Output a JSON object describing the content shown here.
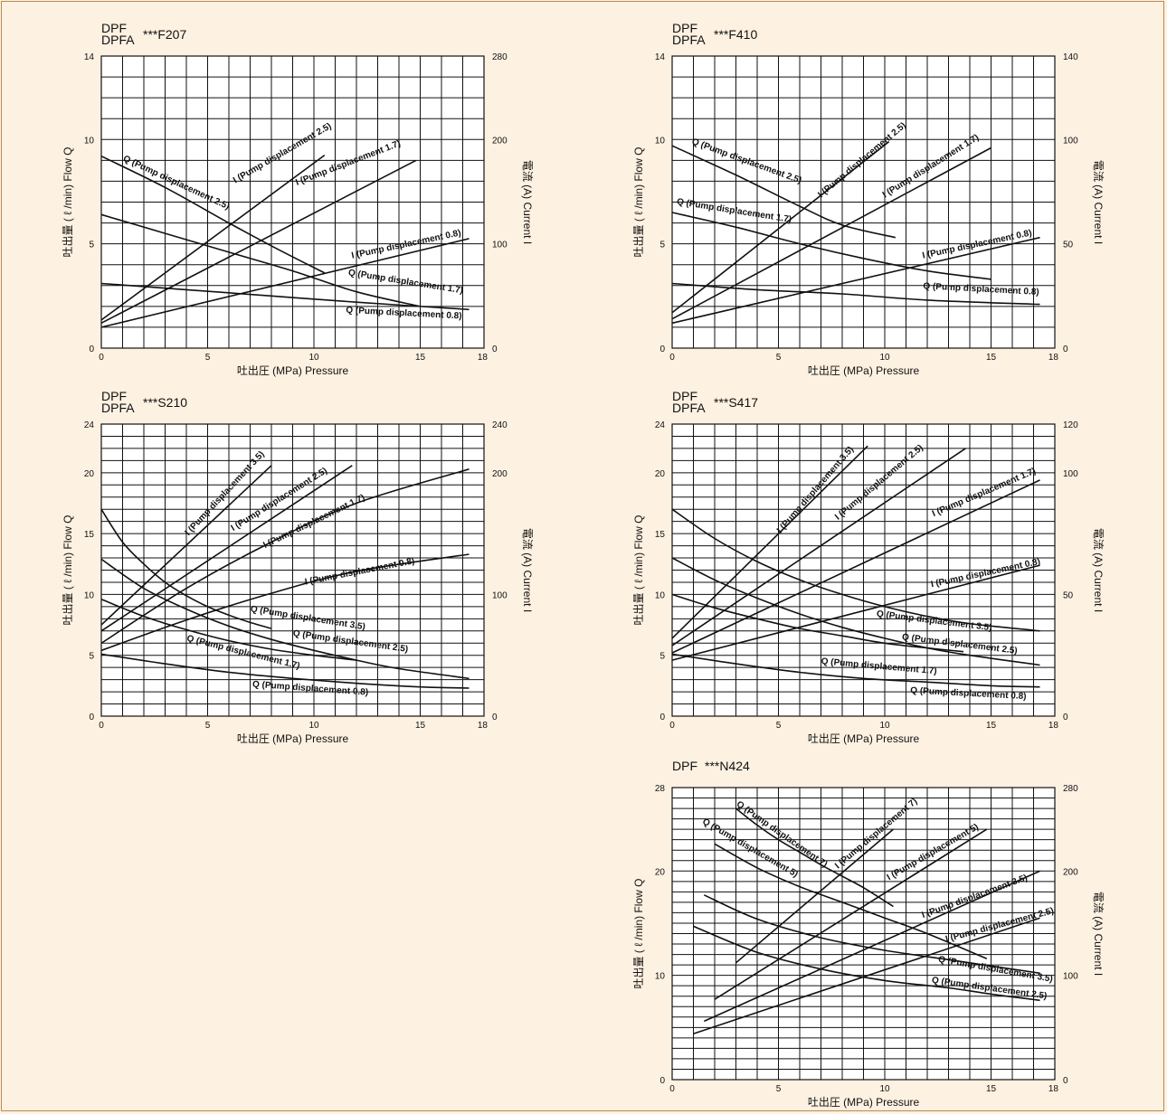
{
  "figure": {
    "background": "#fdf1e1",
    "line_color": "#111111"
  },
  "chart_data": [
    {
      "type": "line",
      "title_line1": "DPF",
      "title_line2": "DPFA",
      "title_code": "***F207",
      "xlabel": "吐出圧 (MPa) Pressure",
      "ylabel": "吐出量 ( ℓ /min) Flow  Q",
      "y2label": "電流 (A) Current  I",
      "xlim": [
        0,
        18
      ],
      "ylim": [
        0,
        14
      ],
      "y2lim": [
        0,
        280
      ],
      "x_ticks": [
        0,
        5,
        10,
        15,
        18
      ],
      "y_ticks": [
        0,
        5,
        10,
        14
      ],
      "y2_ticks": [
        0,
        100,
        200,
        280
      ],
      "grid": {
        "x_step": 1,
        "y_step": 1
      },
      "series": [
        {
          "name": "Q (Pump displacement 2.5)",
          "axis": "left",
          "x": [
            0,
            3,
            6,
            8,
            10.5
          ],
          "y": [
            9.2,
            7.7,
            6.0,
            4.9,
            3.6
          ]
        },
        {
          "name": "Q (Pump displacement 1.7)",
          "axis": "left",
          "x": [
            0,
            3,
            6,
            9,
            12,
            15
          ],
          "y": [
            6.4,
            5.5,
            4.6,
            3.7,
            2.7,
            2.0
          ]
        },
        {
          "name": "Q (Pump displacement 0.8)",
          "axis": "left",
          "x": [
            0,
            4,
            8,
            12,
            17.3
          ],
          "y": [
            3.1,
            2.8,
            2.5,
            2.2,
            1.85
          ]
        },
        {
          "name": "I (Pump displacement 2.5)",
          "axis": "right",
          "x": [
            0,
            10.5
          ],
          "y": [
            27,
            185
          ]
        },
        {
          "name": "I (Pump displacement 1.7)",
          "axis": "right",
          "x": [
            0,
            14.8
          ],
          "y": [
            24,
            180
          ]
        },
        {
          "name": "I (Pump displacement 0.8)",
          "axis": "right",
          "x": [
            0,
            17.3
          ],
          "y": [
            20,
            105
          ]
        }
      ],
      "curve_labels": [
        {
          "text": "Q (Pump displacement 2.5)",
          "x": 1.0,
          "y": 9.0,
          "angle": 25
        },
        {
          "text": "I (Pump displacement 2.5)",
          "x": 6.3,
          "y": 7.9,
          "angle": -30
        },
        {
          "text": "I (Pump displacement 1.7)",
          "x": 9.2,
          "y": 7.8,
          "angle": -21
        },
        {
          "text": "I (Pump displacement 0.8)",
          "x": 11.8,
          "y": 4.3,
          "angle": -12
        },
        {
          "text": "Q (Pump displacement 1.7)",
          "x": 11.6,
          "y": 3.5,
          "angle": 9
        },
        {
          "text": "Q (Pump displacement 0.8)",
          "x": 11.5,
          "y": 1.7,
          "angle": 3
        }
      ]
    },
    {
      "type": "line",
      "title_line1": "DPF",
      "title_line2": "DPFA",
      "title_code": "***F410",
      "xlabel": "吐出圧 (MPa) Pressure",
      "ylabel": "吐出量 ( ℓ /min) Flow  Q",
      "y2label": "電流 (A) Current  I",
      "xlim": [
        0,
        18
      ],
      "ylim": [
        0,
        14
      ],
      "y2lim": [
        0,
        140
      ],
      "x_ticks": [
        0,
        5,
        10,
        15,
        18
      ],
      "y_ticks": [
        0,
        5,
        10,
        14
      ],
      "y2_ticks": [
        0,
        50,
        100,
        140
      ],
      "grid": {
        "x_step": 1,
        "y_step": 1
      },
      "series": [
        {
          "name": "Q (Pump displacement 2.5)",
          "axis": "left",
          "x": [
            0,
            3,
            6,
            8,
            10.5
          ],
          "y": [
            9.7,
            8.3,
            6.8,
            5.9,
            5.3
          ]
        },
        {
          "name": "Q (Pump displacement 1.7)",
          "axis": "left",
          "x": [
            0,
            3,
            6,
            9,
            12,
            15
          ],
          "y": [
            6.5,
            5.8,
            5.0,
            4.3,
            3.7,
            3.3
          ]
        },
        {
          "name": "Q (Pump displacement 0.8)",
          "axis": "left",
          "x": [
            0,
            4,
            8,
            12,
            17.3
          ],
          "y": [
            3.1,
            2.8,
            2.6,
            2.3,
            2.1
          ]
        },
        {
          "name": "I (Pump displacement 2.5)",
          "axis": "right",
          "x": [
            0,
            10.2
          ],
          "y": [
            17,
            99
          ]
        },
        {
          "name": "I (Pump displacement 1.7)",
          "axis": "right",
          "x": [
            0,
            15.0
          ],
          "y": [
            14,
            96
          ]
        },
        {
          "name": "I (Pump displacement 0.8)",
          "axis": "right",
          "x": [
            0,
            17.3
          ],
          "y": [
            12,
            53
          ]
        }
      ],
      "curve_labels": [
        {
          "text": "Q (Pump displacement 2.5)",
          "x": 0.9,
          "y": 9.8,
          "angle": 20
        },
        {
          "text": "Q (Pump displacement 1.7)",
          "x": 0.2,
          "y": 6.9,
          "angle": 9
        },
        {
          "text": "I (Pump displacement 2.5)",
          "x": 7.0,
          "y": 7.2,
          "angle": -40
        },
        {
          "text": "I (Pump displacement 1.7)",
          "x": 10.0,
          "y": 7.2,
          "angle": -32
        },
        {
          "text": "I (Pump displacement 0.8)",
          "x": 11.8,
          "y": 4.3,
          "angle": -12
        },
        {
          "text": "Q (Pump displacement 0.8)",
          "x": 11.8,
          "y": 2.85,
          "angle": 3
        }
      ]
    },
    {
      "type": "line",
      "title_line1": "DPF",
      "title_line2": "DPFA",
      "title_code": "***S210",
      "xlabel": "吐出圧 (MPa) Pressure",
      "ylabel": "吐出量 ( ℓ /min) Flow  Q",
      "y2label": "電流 (A) Current  I",
      "xlim": [
        0,
        18
      ],
      "ylim": [
        0,
        24
      ],
      "y2lim": [
        0,
        240
      ],
      "x_ticks": [
        0,
        5,
        10,
        15,
        18
      ],
      "y_ticks": [
        0,
        5,
        10,
        15,
        20,
        24
      ],
      "y2_ticks": [
        0,
        100,
        200,
        240
      ],
      "grid": {
        "x_step": 1,
        "y_step": 1
      },
      "series": [
        {
          "name": "Q (Pump displacement 3.5)",
          "axis": "left",
          "x": [
            0,
            1,
            2,
            3,
            4,
            5,
            6,
            7,
            8
          ],
          "y": [
            17.0,
            14.3,
            12.5,
            11.0,
            9.9,
            9.0,
            8.3,
            7.7,
            7.2
          ]
        },
        {
          "name": "Q (Pump displacement 2.5)",
          "axis": "left",
          "x": [
            0,
            2,
            4,
            6,
            8,
            10,
            12,
            14,
            17.3
          ],
          "y": [
            12.9,
            10.5,
            8.8,
            7.4,
            6.3,
            5.4,
            4.6,
            3.9,
            3.1
          ]
        },
        {
          "name": "Q (Pump displacement 1.7)",
          "axis": "left",
          "x": [
            0,
            2,
            4,
            6,
            8,
            10,
            12
          ],
          "y": [
            9.6,
            8.2,
            7.1,
            6.2,
            5.5,
            5.0,
            4.6
          ]
        },
        {
          "name": "Q (Pump displacement 0.8)",
          "axis": "left",
          "x": [
            0,
            3,
            6,
            9,
            12,
            15,
            17.3
          ],
          "y": [
            5.1,
            4.3,
            3.6,
            3.1,
            2.7,
            2.4,
            2.3
          ]
        },
        {
          "name": "I (Pump displacement 3.5)",
          "axis": "right",
          "x": [
            0,
            8
          ],
          "y": [
            75,
            206
          ]
        },
        {
          "name": "I (Pump displacement 2.5)",
          "axis": "right",
          "x": [
            0,
            11.8
          ],
          "y": [
            70,
            206
          ]
        },
        {
          "name": "I (Pump displacement 1.7)",
          "axis": "right",
          "x": [
            0,
            4,
            8,
            12,
            17.3
          ],
          "y": [
            60,
            105,
            143,
            175,
            203
          ]
        },
        {
          "name": "I (Pump displacement 0.8)",
          "axis": "right",
          "x": [
            0,
            4,
            8,
            12,
            17.3
          ],
          "y": [
            54,
            79,
            101,
            119,
            133
          ]
        }
      ],
      "curve_labels": [
        {
          "text": "I (Pump displacement 3.5)",
          "x": 4.1,
          "y": 14.8,
          "angle": -47
        },
        {
          "text": "I (Pump displacement 2.5)",
          "x": 6.2,
          "y": 15.2,
          "angle": -32
        },
        {
          "text": "I (Pump displacement 1.7)",
          "x": 7.7,
          "y": 13.8,
          "angle": -26
        },
        {
          "text": "I (Pump displacement 0.8)",
          "x": 9.6,
          "y": 10.8,
          "angle": -11
        },
        {
          "text": "Q (Pump displacement 3.5)",
          "x": 7.0,
          "y": 8.6,
          "angle": 9
        },
        {
          "text": "Q (Pump displacement 2.5)",
          "x": 9.0,
          "y": 6.6,
          "angle": 8
        },
        {
          "text": "Q (Pump displacement 1.7)",
          "x": 4.0,
          "y": 6.2,
          "angle": 14
        },
        {
          "text": "Q (Pump displacement 0.8)",
          "x": 7.1,
          "y": 2.4,
          "angle": 4
        }
      ]
    },
    {
      "type": "line",
      "title_line1": "DPF",
      "title_line2": "DPFA",
      "title_code": "***S417",
      "xlabel": "吐出圧 (MPa) Pressure",
      "ylabel": "吐出量 ( ℓ /min) Flow  Q",
      "y2label": "電流 (A) Current  I",
      "xlim": [
        0,
        18
      ],
      "ylim": [
        0,
        24
      ],
      "y2lim": [
        0,
        120
      ],
      "x_ticks": [
        0,
        5,
        10,
        15,
        18
      ],
      "y_ticks": [
        0,
        5,
        10,
        15,
        20,
        24
      ],
      "y2_ticks": [
        0,
        50,
        100,
        120
      ],
      "grid": {
        "x_step": 1,
        "y_step": 1
      },
      "series": [
        {
          "name": "Q (Pump displacement 3.5)",
          "axis": "left",
          "x": [
            0,
            2,
            4,
            6,
            8,
            10,
            12,
            14,
            17.3
          ],
          "y": [
            17.0,
            14.6,
            12.7,
            11.2,
            10.0,
            9.0,
            8.2,
            7.6,
            7.0
          ]
        },
        {
          "name": "Q (Pump displacement 2.5)",
          "axis": "left",
          "x": [
            0,
            2,
            4,
            6,
            8,
            10,
            12,
            14,
            17.3
          ],
          "y": [
            13.0,
            11.2,
            9.7,
            8.4,
            7.3,
            6.4,
            5.6,
            5.0,
            4.2
          ]
        },
        {
          "name": "Q (Pump displacement 1.7)",
          "axis": "left",
          "x": [
            0,
            2,
            4,
            6,
            8,
            10,
            12,
            13.7
          ],
          "y": [
            10.0,
            8.9,
            8.0,
            7.2,
            6.6,
            6.0,
            5.6,
            5.3
          ]
        },
        {
          "name": "Q (Pump displacement 0.8)",
          "axis": "left",
          "x": [
            0,
            3,
            6,
            9,
            12,
            15,
            17.3
          ],
          "y": [
            5.1,
            4.3,
            3.6,
            3.1,
            2.8,
            2.5,
            2.4
          ]
        },
        {
          "name": "I (Pump displacement 3.5)",
          "axis": "right",
          "x": [
            0,
            9.2
          ],
          "y": [
            32,
            111
          ]
        },
        {
          "name": "I (Pump displacement 2.5)",
          "axis": "right",
          "x": [
            0,
            13.8
          ],
          "y": [
            29,
            110
          ]
        },
        {
          "name": "I (Pump displacement 1.7)",
          "axis": "right",
          "x": [
            0,
            17.3
          ],
          "y": [
            26,
            97
          ]
        },
        {
          "name": "I (Pump displacement 0.8)",
          "axis": "right",
          "x": [
            0,
            17.3
          ],
          "y": [
            23,
            62
          ]
        }
      ],
      "curve_labels": [
        {
          "text": "I (Pump displacement 3.5)",
          "x": 5.1,
          "y": 15.0,
          "angle": -49
        },
        {
          "text": "I (Pump displacement 2.5)",
          "x": 7.8,
          "y": 16.1,
          "angle": -40
        },
        {
          "text": "I (Pump displacement 1.7)",
          "x": 12.3,
          "y": 16.4,
          "angle": -23
        },
        {
          "text": "I (Pump displacement 0.8)",
          "x": 12.2,
          "y": 10.6,
          "angle": -12
        },
        {
          "text": "Q (Pump displacement 3.5)",
          "x": 9.6,
          "y": 8.2,
          "angle": 7
        },
        {
          "text": "Q (Pump displacement 2.5)",
          "x": 10.8,
          "y": 6.3,
          "angle": 7
        },
        {
          "text": "Q (Pump displacement 1.7)",
          "x": 7.0,
          "y": 4.3,
          "angle": 5
        },
        {
          "text": "Q (Pump displacement 0.8)",
          "x": 11.2,
          "y": 1.9,
          "angle": 3
        }
      ]
    },
    {
      "type": "line",
      "title_line1": "",
      "title_line2": "DPF",
      "title_code": "***N424",
      "xlabel": "吐出圧 (MPa) Pressure",
      "ylabel": "吐出量 ( ℓ /min) Flow  Q",
      "y2label": "電流 (A) Current  I",
      "xlim": [
        0,
        18
      ],
      "ylim": [
        0,
        28
      ],
      "y2lim": [
        0,
        280
      ],
      "x_ticks": [
        0,
        5,
        10,
        15,
        18
      ],
      "y_ticks": [
        0,
        10,
        20,
        28
      ],
      "y2_ticks": [
        0,
        100,
        200,
        280
      ],
      "grid": {
        "x_step": 1,
        "y_step": 1
      },
      "series": [
        {
          "name": "Q (Pump displacement 7)",
          "axis": "left",
          "x": [
            3,
            4,
            5,
            6,
            7,
            8,
            9,
            10.4
          ],
          "y": [
            26.0,
            24.4,
            23.0,
            21.8,
            20.6,
            19.5,
            18.4,
            16.6
          ]
        },
        {
          "name": "Q (Pump displacement 5)",
          "axis": "left",
          "x": [
            2,
            4,
            6,
            8,
            10,
            12,
            14.8
          ],
          "y": [
            22.6,
            20.3,
            18.5,
            17.0,
            15.5,
            14.0,
            11.6
          ]
        },
        {
          "name": "Q (Pump displacement 3.5)",
          "axis": "left",
          "x": [
            1.5,
            4,
            7,
            10,
            13,
            15,
            17.3
          ],
          "y": [
            17.7,
            15.4,
            13.6,
            12.4,
            11.5,
            10.9,
            10.2
          ]
        },
        {
          "name": "Q (Pump displacement 2.5)",
          "axis": "left",
          "x": [
            1,
            4,
            7,
            10,
            13,
            15,
            17.3
          ],
          "y": [
            14.7,
            12.2,
            10.6,
            9.5,
            8.8,
            8.2,
            7.6
          ]
        },
        {
          "name": "I (Pump displacement 7)",
          "axis": "right",
          "x": [
            3,
            10.4
          ],
          "y": [
            112,
            240
          ]
        },
        {
          "name": "I (Pump displacement 5)",
          "axis": "right",
          "x": [
            2,
            14.8
          ],
          "y": [
            77,
            240
          ]
        },
        {
          "name": "I (Pump displacement 3.5)",
          "axis": "right",
          "x": [
            1.5,
            17.3
          ],
          "y": [
            56,
            200
          ]
        },
        {
          "name": "I (Pump displacement 2.5)",
          "axis": "right",
          "x": [
            1,
            17.3
          ],
          "y": [
            44,
            155
          ]
        }
      ],
      "curve_labels": [
        {
          "text": "Q (Pump displacement 7)",
          "x": 3.0,
          "y": 26.3,
          "angle": 35
        },
        {
          "text": "Q (Pump displacement 5)",
          "x": 1.4,
          "y": 24.6,
          "angle": 30
        },
        {
          "text": "I (Pump displacement 7)",
          "x": 7.8,
          "y": 20.2,
          "angle": -40
        },
        {
          "text": "I (Pump displacement 5)",
          "x": 10.2,
          "y": 19.1,
          "angle": -30
        },
        {
          "text": "I (Pump displacement 3.5)",
          "x": 11.8,
          "y": 15.5,
          "angle": -20
        },
        {
          "text": "I (Pump displacement 2.5)",
          "x": 12.9,
          "y": 13.2,
          "angle": -15
        },
        {
          "text": "Q (Pump displacement 3.5)",
          "x": 12.5,
          "y": 11.3,
          "angle": 10
        },
        {
          "text": "Q (Pump displacement 2.5)",
          "x": 12.2,
          "y": 9.3,
          "angle": 8
        }
      ]
    }
  ]
}
